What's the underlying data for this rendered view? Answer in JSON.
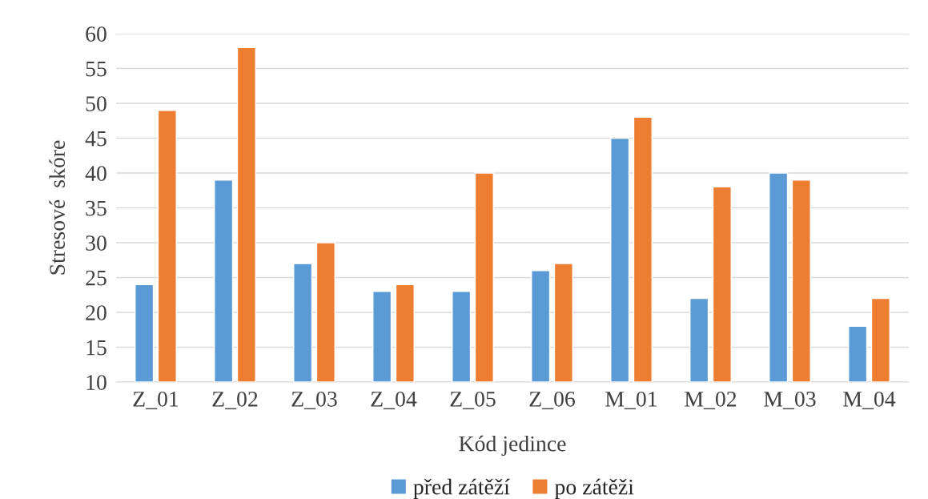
{
  "chart_data": {
    "type": "bar",
    "xlabel": "Kód jedince",
    "ylabel": "Stresové  skóre",
    "categories": [
      "Z_01",
      "Z_02",
      "Z_03",
      "Z_04",
      "Z_05",
      "Z_06",
      "M_01",
      "M_02",
      "M_03",
      "M_04"
    ],
    "series": [
      {
        "name": "před zátěží",
        "color": "#5b9bd5",
        "values": [
          24,
          39,
          27,
          23,
          23,
          26,
          45,
          22,
          40,
          18
        ]
      },
      {
        "name": "po zátěži",
        "color": "#ed7d31",
        "values": [
          49,
          58,
          30,
          24,
          40,
          27,
          48,
          38,
          39,
          22
        ]
      }
    ],
    "ylim": [
      10,
      60
    ],
    "yticks": [
      10,
      15,
      20,
      25,
      30,
      35,
      40,
      45,
      50,
      55,
      60
    ],
    "grid": "y",
    "legend": "bottom"
  }
}
